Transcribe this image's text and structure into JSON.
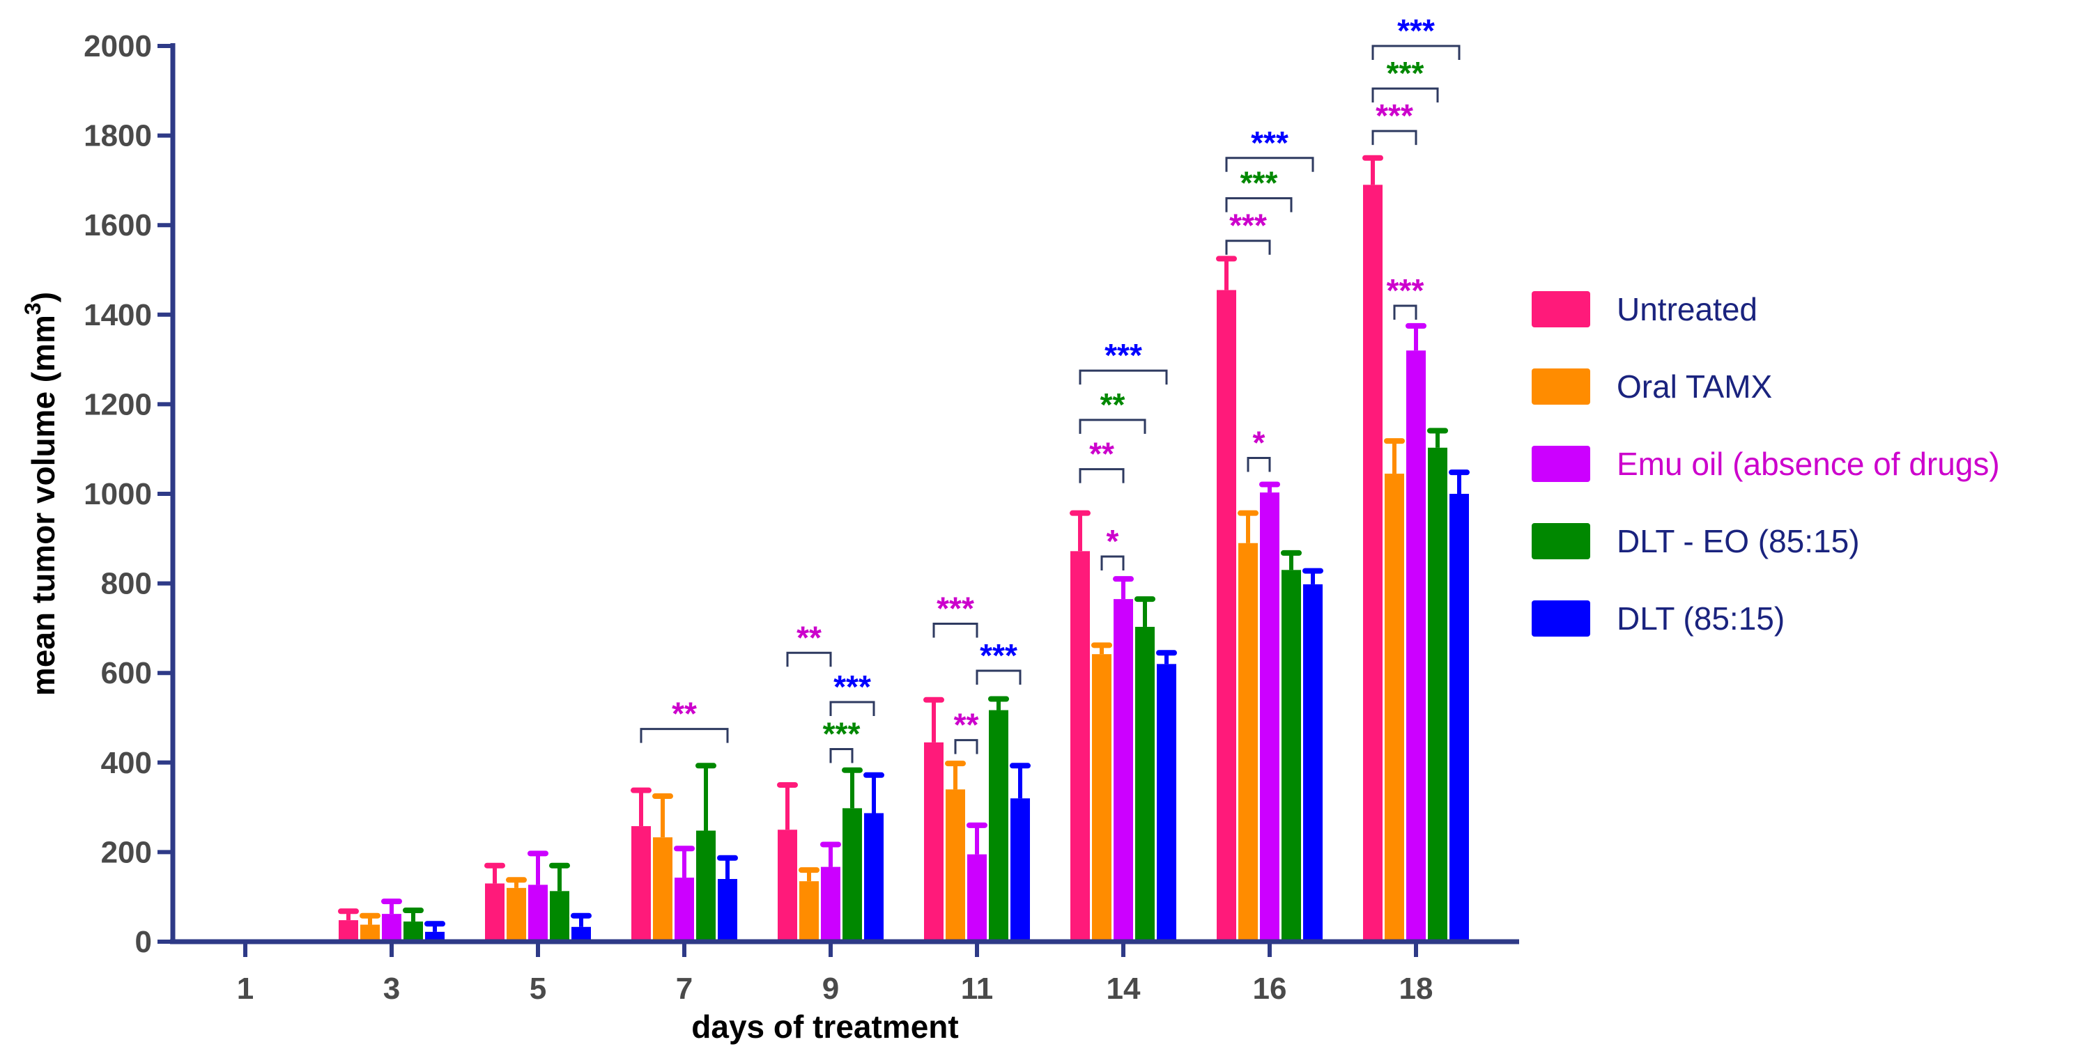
{
  "chart_data": {
    "type": "bar",
    "title": "",
    "xlabel": "days of treatment",
    "ylabel": "mean tumor volume (mm",
    "ylabel_superscript": "3",
    "ylabel_suffix": ")",
    "ylim": [
      0,
      2000
    ],
    "yticks": [
      "0",
      "200",
      "400",
      "600",
      "800",
      "1000",
      "1200",
      "1400",
      "1600",
      "1800",
      "2000"
    ],
    "categories": [
      "1",
      "3",
      "5",
      "7",
      "9",
      "11",
      "14",
      "16",
      "18"
    ],
    "legend_position": "right",
    "axis_color": "#2e3a87",
    "series": [
      {
        "name": "Untreated",
        "color": "#ff1a7a",
        "label_color": "#1a237e",
        "values": [
          0,
          48,
          130,
          258,
          250,
          445,
          872,
          1455,
          1690
        ],
        "errors": [
          0,
          20,
          40,
          80,
          100,
          95,
          85,
          70,
          60
        ]
      },
      {
        "name": "Oral TAMX",
        "color": "#ff8c00",
        "label_color": "#1a237e",
        "values": [
          0,
          38,
          120,
          233,
          135,
          340,
          642,
          890,
          1045
        ],
        "errors": [
          0,
          20,
          18,
          92,
          25,
          58,
          20,
          67,
          73
        ]
      },
      {
        "name": " Emu oil (absence of drugs)",
        "color": "#cc00ff",
        "label_color": "#cc00cc",
        "values": [
          0,
          62,
          127,
          143,
          167,
          195,
          765,
          1003,
          1320
        ],
        "errors": [
          0,
          28,
          70,
          65,
          50,
          65,
          45,
          18,
          55
        ]
      },
      {
        "name": "DLT - EO (85:15)",
        "color": "#008800",
        "label_color": "#1a237e",
        "values": [
          0,
          45,
          113,
          248,
          298,
          517,
          703,
          830,
          1103
        ],
        "errors": [
          0,
          25,
          57,
          145,
          85,
          25,
          62,
          38,
          38
        ]
      },
      {
        "name": "DLT (85:15)",
        "color": "#0000ff",
        "label_color": "#1a237e",
        "values": [
          0,
          22,
          33,
          140,
          287,
          320,
          620,
          798,
          1000
        ],
        "errors": [
          0,
          18,
          25,
          47,
          85,
          73,
          25,
          30,
          48
        ]
      }
    ],
    "annotations": [
      {
        "text": "**",
        "category": "7",
        "from_series": 0,
        "to_series": 4,
        "level": 475,
        "color": "#cc00cc"
      },
      {
        "text": "**",
        "category": "9",
        "from_series": 0,
        "to_series": 2,
        "level": 645,
        "color": "#cc00cc"
      },
      {
        "text": "***",
        "category": "9",
        "from_series": 2,
        "to_series": 4,
        "level": 535,
        "color": "#0000ff"
      },
      {
        "text": "***",
        "category": "9",
        "from_series": 2,
        "to_series": 3,
        "level": 430,
        "color": "#008800"
      },
      {
        "text": "***",
        "category": "11",
        "from_series": 0,
        "to_series": 2,
        "level": 710,
        "color": "#cc00cc"
      },
      {
        "text": "***",
        "category": "11",
        "from_series": 2,
        "to_series": 4,
        "level": 605,
        "color": "#0000ff"
      },
      {
        "text": "**",
        "category": "11",
        "from_series": 1,
        "to_series": 2,
        "level": 450,
        "color": "#cc00cc"
      },
      {
        "text": "***",
        "category": "14",
        "from_series": 0,
        "to_series": 4,
        "level": 1275,
        "color": "#0000ff"
      },
      {
        "text": "**",
        "category": "14",
        "from_series": 0,
        "to_series": 3,
        "level": 1165,
        "color": "#008800"
      },
      {
        "text": "**",
        "category": "14",
        "from_series": 0,
        "to_series": 2,
        "level": 1055,
        "color": "#cc00cc"
      },
      {
        "text": "*",
        "category": "14",
        "from_series": 1,
        "to_series": 2,
        "level": 860,
        "color": "#cc00cc"
      },
      {
        "text": "***",
        "category": "16",
        "from_series": 0,
        "to_series": 4,
        "level": 1750,
        "color": "#0000ff"
      },
      {
        "text": "***",
        "category": "16",
        "from_series": 0,
        "to_series": 3,
        "level": 1660,
        "color": "#008800"
      },
      {
        "text": "***",
        "category": "16",
        "from_series": 0,
        "to_series": 2,
        "level": 1565,
        "color": "#cc00cc"
      },
      {
        "text": "*",
        "category": "16",
        "from_series": 1,
        "to_series": 2,
        "level": 1080,
        "color": "#cc00cc"
      },
      {
        "text": "***",
        "category": "18",
        "from_series": 0,
        "to_series": 4,
        "level": 2000,
        "color": "#0000ff"
      },
      {
        "text": "***",
        "category": "18",
        "from_series": 0,
        "to_series": 3,
        "level": 1905,
        "color": "#008800"
      },
      {
        "text": "***",
        "category": "18",
        "from_series": 0,
        "to_series": 2,
        "level": 1810,
        "color": "#cc00cc"
      },
      {
        "text": "***",
        "category": "18",
        "from_series": 1,
        "to_series": 2,
        "level": 1420,
        "color": "#cc00cc"
      }
    ]
  }
}
